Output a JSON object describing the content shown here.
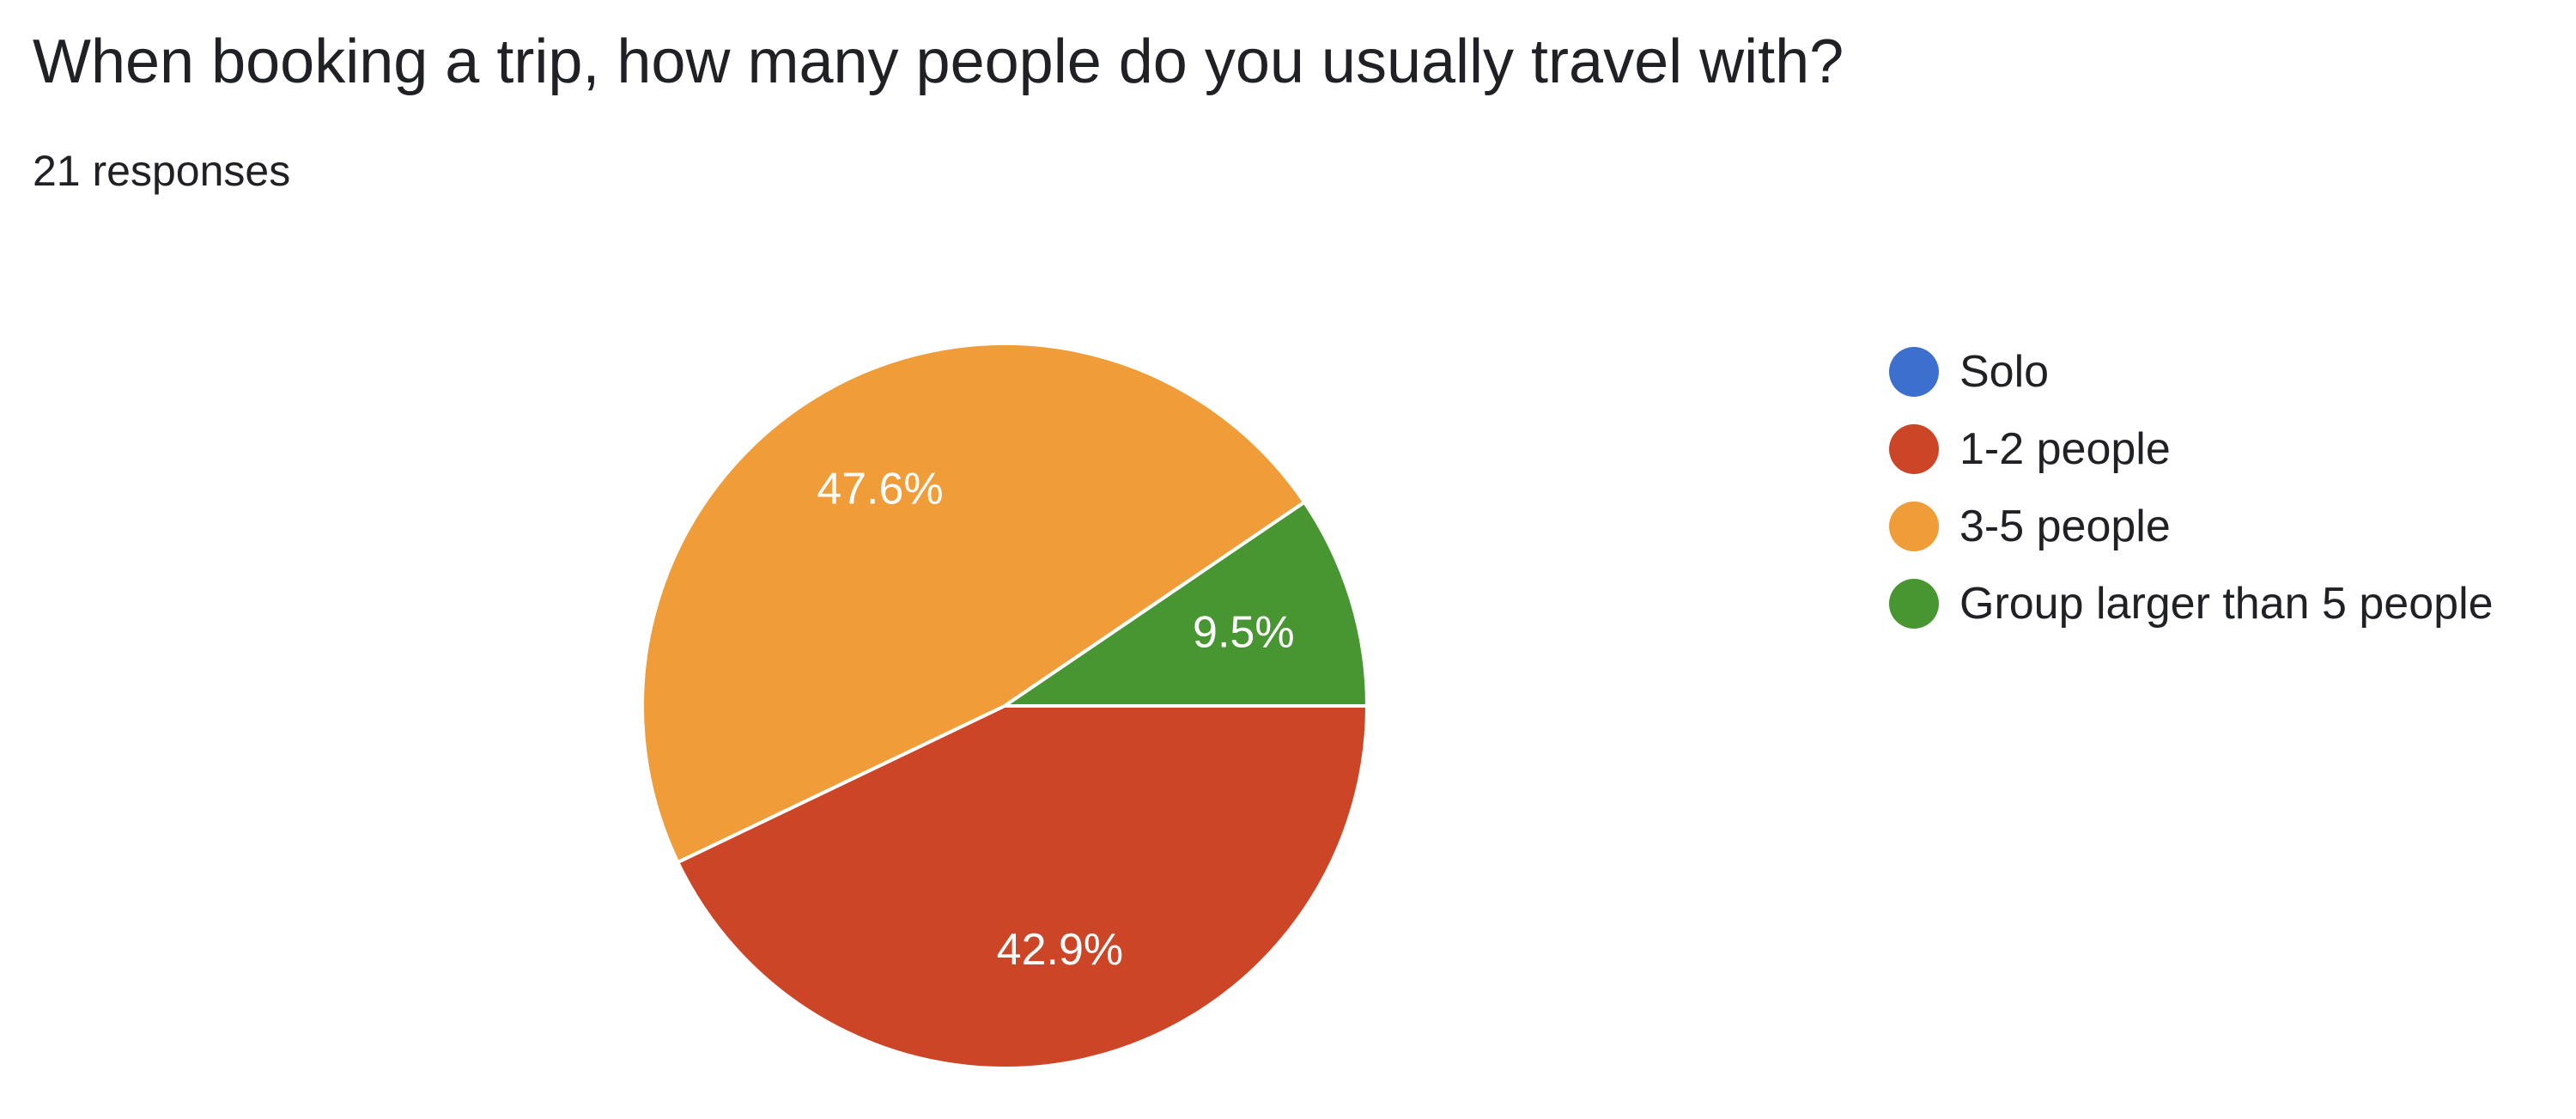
{
  "header": {
    "question": "When booking a trip, how many people do you usually travel with?",
    "responses": "21 responses"
  },
  "chart_data": {
    "type": "pie",
    "title": "When booking a trip, how many people do you usually travel with?",
    "categories": [
      "Solo",
      "1-2 people",
      "3-5 people",
      "Group larger than 5 people"
    ],
    "values": [
      0,
      42.9,
      47.6,
      9.5
    ],
    "counts": [
      0,
      9,
      10,
      2
    ],
    "data_labels": [
      "",
      "42.9%",
      "47.6%",
      "9.5%"
    ],
    "colors": [
      "#3d6fce",
      "#cc4527",
      "#f09c38",
      "#489632"
    ],
    "legend_position": "right",
    "start_angle_deg": 0,
    "direction": "clockwise"
  },
  "legend": {
    "items": [
      {
        "label": "Solo",
        "color": "#3d6fce"
      },
      {
        "label": "1-2 people",
        "color": "#cc4527"
      },
      {
        "label": "3-5 people",
        "color": "#f09c38"
      },
      {
        "label": "Group larger than 5 people",
        "color": "#489632"
      }
    ]
  }
}
